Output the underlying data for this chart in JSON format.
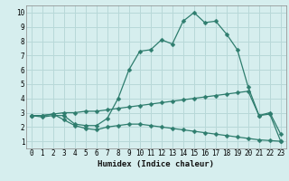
{
  "xlabel": "Humidex (Indice chaleur)",
  "background_color": "#d6eeee",
  "grid_color": "#b8d8d8",
  "line_color": "#2e7d6e",
  "xlim": [
    -0.5,
    23.5
  ],
  "ylim": [
    0.5,
    10.5
  ],
  "xticks": [
    0,
    1,
    2,
    3,
    4,
    5,
    6,
    7,
    8,
    9,
    10,
    11,
    12,
    13,
    14,
    15,
    16,
    17,
    18,
    19,
    20,
    21,
    22,
    23
  ],
  "yticks": [
    1,
    2,
    3,
    4,
    5,
    6,
    7,
    8,
    9,
    10
  ],
  "line1_x": [
    0,
    1,
    2,
    3,
    4,
    5,
    6,
    7,
    8,
    9,
    10,
    11,
    12,
    13,
    14,
    15,
    16,
    17,
    18,
    19,
    20,
    21,
    22,
    23
  ],
  "line1_y": [
    2.8,
    2.7,
    2.8,
    2.8,
    2.2,
    2.1,
    2.1,
    2.6,
    4.0,
    6.0,
    7.3,
    7.4,
    8.1,
    7.8,
    9.4,
    10.0,
    9.3,
    9.4,
    8.5,
    7.4,
    4.8,
    2.8,
    3.0,
    1.5
  ],
  "line2_x": [
    0,
    1,
    2,
    3,
    4,
    5,
    6,
    7,
    8,
    9,
    10,
    11,
    12,
    13,
    14,
    15,
    16,
    17,
    18,
    19,
    20,
    21,
    22,
    23
  ],
  "line2_y": [
    2.8,
    2.8,
    2.9,
    3.0,
    3.0,
    3.1,
    3.1,
    3.2,
    3.3,
    3.4,
    3.5,
    3.6,
    3.7,
    3.8,
    3.9,
    4.0,
    4.1,
    4.2,
    4.3,
    4.4,
    4.5,
    2.8,
    2.9,
    1.0
  ],
  "line3_x": [
    0,
    1,
    2,
    3,
    4,
    5,
    6,
    7,
    8,
    9,
    10,
    11,
    12,
    13,
    14,
    15,
    16,
    17,
    18,
    19,
    20,
    21,
    22,
    23
  ],
  "line3_y": [
    2.8,
    2.8,
    2.9,
    2.5,
    2.1,
    1.9,
    1.8,
    2.0,
    2.1,
    2.2,
    2.2,
    2.1,
    2.0,
    1.9,
    1.8,
    1.7,
    1.6,
    1.5,
    1.4,
    1.3,
    1.2,
    1.1,
    1.05,
    1.0
  ],
  "tick_fontsize": 5.5,
  "xlabel_fontsize": 6.5
}
